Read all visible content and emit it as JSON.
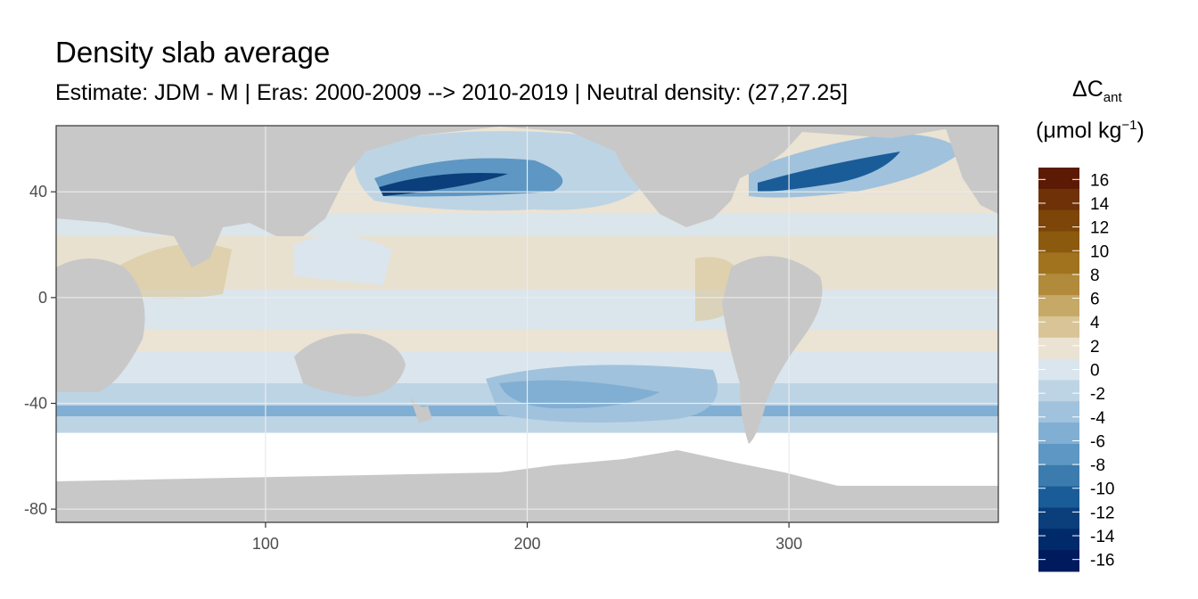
{
  "title": "Density slab average",
  "subtitle": "Estimate: JDM - M | Eras: 2000-2009 --> 2010-2019 | Neutral density: (27,27.25]",
  "legend": {
    "title_symbol": "ΔC",
    "title_subscript": "ant",
    "unit_prefix": "(μmol kg",
    "unit_superscript": "−1",
    "unit_suffix": ")",
    "labels": [
      "16",
      "14",
      "12",
      "10",
      "8",
      "6",
      "4",
      "2",
      "0",
      "-2",
      "-4",
      "-6",
      "-8",
      "-10",
      "-12",
      "-14",
      "-16"
    ],
    "colors": [
      "#5c1a05",
      "#6f3208",
      "#7d4508",
      "#8c5a0e",
      "#a2731f",
      "#b18a3c",
      "#c6a867",
      "#d9c497",
      "#eae3d3",
      "#dae5ed",
      "#bdd4e5",
      "#a0c2dd",
      "#81afd3",
      "#5e97c3",
      "#3c7bae",
      "#1a5c98",
      "#0a3f7b",
      "#002a6a",
      "#001a5e"
    ]
  },
  "chart_data": {
    "type": "heatmap",
    "title": "Density slab average",
    "subtitle": "Estimate: JDM - M | Eras: 2000-2009 --> 2010-2019 | Neutral density: (27,27.25]",
    "xlabel": "",
    "ylabel": "",
    "xlim": [
      20,
      380
    ],
    "ylim": [
      -85,
      65
    ],
    "x_ticks": [
      100,
      200,
      300
    ],
    "y_ticks": [
      40,
      0,
      -40,
      -80
    ],
    "grid": true,
    "legend_position": "right",
    "color_scale_range": [
      -17,
      17
    ],
    "color_scale_breaks": [
      16,
      14,
      12,
      10,
      8,
      6,
      4,
      2,
      0,
      -2,
      -4,
      -6,
      -8,
      -10,
      -12,
      -14,
      -16
    ]
  }
}
